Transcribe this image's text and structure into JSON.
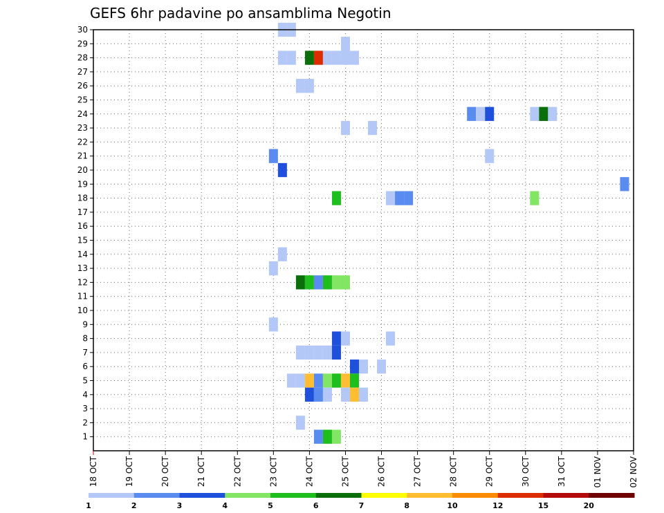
{
  "chart_data": {
    "type": "heatmap",
    "title": "GEFS 6hr padavine po ansamblima Negotin",
    "x_ticks": [
      "18 OCT",
      "19 OCT",
      "20 OCT",
      "21 OCT",
      "22 OCT",
      "23 OCT",
      "24 OCT",
      "25 OCT",
      "26 OCT",
      "27 OCT",
      "28 OCT",
      "29 OCT",
      "30 OCT",
      "31 OCT",
      "01 NOV",
      "02 NOV"
    ],
    "x_range_hours": [
      0,
      360
    ],
    "step_hours": 6,
    "y_ticks": [
      1,
      2,
      3,
      4,
      5,
      6,
      7,
      8,
      9,
      10,
      11,
      12,
      13,
      14,
      15,
      16,
      17,
      18,
      19,
      20,
      21,
      22,
      23,
      24,
      25,
      26,
      27,
      28,
      29,
      30
    ],
    "y_range": [
      0,
      30
    ],
    "grid": true,
    "levels": [
      1,
      2,
      3,
      4,
      5,
      6,
      7,
      8,
      10,
      12,
      15,
      20
    ],
    "colors": [
      "#b4c8f8",
      "#5a8cf0",
      "#1e50dc",
      "#82e664",
      "#1ebe1e",
      "#0a6e0a",
      "#ffff00",
      "#ffbe32",
      "#ff8c00",
      "#dc2d00",
      "#b40a0a",
      "#6e0000"
    ],
    "cells": [
      {
        "member": 30,
        "hour": 126,
        "class": 1
      },
      {
        "member": 30,
        "hour": 132,
        "class": 1
      },
      {
        "member": 29,
        "hour": 168,
        "class": 1
      },
      {
        "member": 28,
        "hour": 126,
        "class": 1
      },
      {
        "member": 28,
        "hour": 132,
        "class": 1
      },
      {
        "member": 28,
        "hour": 144,
        "class": 6
      },
      {
        "member": 28,
        "hour": 150,
        "class": 10
      },
      {
        "member": 28,
        "hour": 156,
        "class": 1
      },
      {
        "member": 28,
        "hour": 162,
        "class": 1
      },
      {
        "member": 28,
        "hour": 168,
        "class": 1
      },
      {
        "member": 28,
        "hour": 174,
        "class": 1
      },
      {
        "member": 26,
        "hour": 138,
        "class": 1
      },
      {
        "member": 26,
        "hour": 144,
        "class": 1
      },
      {
        "member": 24,
        "hour": 252,
        "class": 2
      },
      {
        "member": 24,
        "hour": 258,
        "class": 1
      },
      {
        "member": 24,
        "hour": 264,
        "class": 3
      },
      {
        "member": 24,
        "hour": 294,
        "class": 1
      },
      {
        "member": 24,
        "hour": 300,
        "class": 6
      },
      {
        "member": 24,
        "hour": 306,
        "class": 1
      },
      {
        "member": 23,
        "hour": 168,
        "class": 1
      },
      {
        "member": 23,
        "hour": 186,
        "class": 1
      },
      {
        "member": 21,
        "hour": 120,
        "class": 2
      },
      {
        "member": 21,
        "hour": 264,
        "class": 1
      },
      {
        "member": 20,
        "hour": 126,
        "class": 3
      },
      {
        "member": 19,
        "hour": 354,
        "class": 2
      },
      {
        "member": 18,
        "hour": 162,
        "class": 5
      },
      {
        "member": 18,
        "hour": 198,
        "class": 1
      },
      {
        "member": 18,
        "hour": 204,
        "class": 2
      },
      {
        "member": 18,
        "hour": 210,
        "class": 2
      },
      {
        "member": 18,
        "hour": 294,
        "class": 4
      },
      {
        "member": 14,
        "hour": 126,
        "class": 1
      },
      {
        "member": 13,
        "hour": 120,
        "class": 1
      },
      {
        "member": 12,
        "hour": 138,
        "class": 6
      },
      {
        "member": 12,
        "hour": 144,
        "class": 5
      },
      {
        "member": 12,
        "hour": 150,
        "class": 2
      },
      {
        "member": 12,
        "hour": 156,
        "class": 5
      },
      {
        "member": 12,
        "hour": 162,
        "class": 4
      },
      {
        "member": 12,
        "hour": 168,
        "class": 4
      },
      {
        "member": 9,
        "hour": 120,
        "class": 1
      },
      {
        "member": 8,
        "hour": 162,
        "class": 3
      },
      {
        "member": 8,
        "hour": 168,
        "class": 1
      },
      {
        "member": 8,
        "hour": 198,
        "class": 1
      },
      {
        "member": 7,
        "hour": 138,
        "class": 1
      },
      {
        "member": 7,
        "hour": 144,
        "class": 1
      },
      {
        "member": 7,
        "hour": 150,
        "class": 1
      },
      {
        "member": 7,
        "hour": 156,
        "class": 1
      },
      {
        "member": 7,
        "hour": 162,
        "class": 3
      },
      {
        "member": 6,
        "hour": 174,
        "class": 3
      },
      {
        "member": 6,
        "hour": 180,
        "class": 1
      },
      {
        "member": 6,
        "hour": 192,
        "class": 1
      },
      {
        "member": 5,
        "hour": 132,
        "class": 1
      },
      {
        "member": 5,
        "hour": 138,
        "class": 1
      },
      {
        "member": 5,
        "hour": 144,
        "class": 8
      },
      {
        "member": 5,
        "hour": 150,
        "class": 2
      },
      {
        "member": 5,
        "hour": 156,
        "class": 4
      },
      {
        "member": 5,
        "hour": 162,
        "class": 5
      },
      {
        "member": 5,
        "hour": 168,
        "class": 8
      },
      {
        "member": 5,
        "hour": 174,
        "class": 5
      },
      {
        "member": 4,
        "hour": 144,
        "class": 3
      },
      {
        "member": 4,
        "hour": 150,
        "class": 2
      },
      {
        "member": 4,
        "hour": 156,
        "class": 1
      },
      {
        "member": 4,
        "hour": 168,
        "class": 1
      },
      {
        "member": 4,
        "hour": 174,
        "class": 8
      },
      {
        "member": 4,
        "hour": 180,
        "class": 1
      },
      {
        "member": 2,
        "hour": 138,
        "class": 1
      },
      {
        "member": 1,
        "hour": 150,
        "class": 2
      },
      {
        "member": 1,
        "hour": 156,
        "class": 5
      },
      {
        "member": 1,
        "hour": 162,
        "class": 4
      }
    ]
  }
}
